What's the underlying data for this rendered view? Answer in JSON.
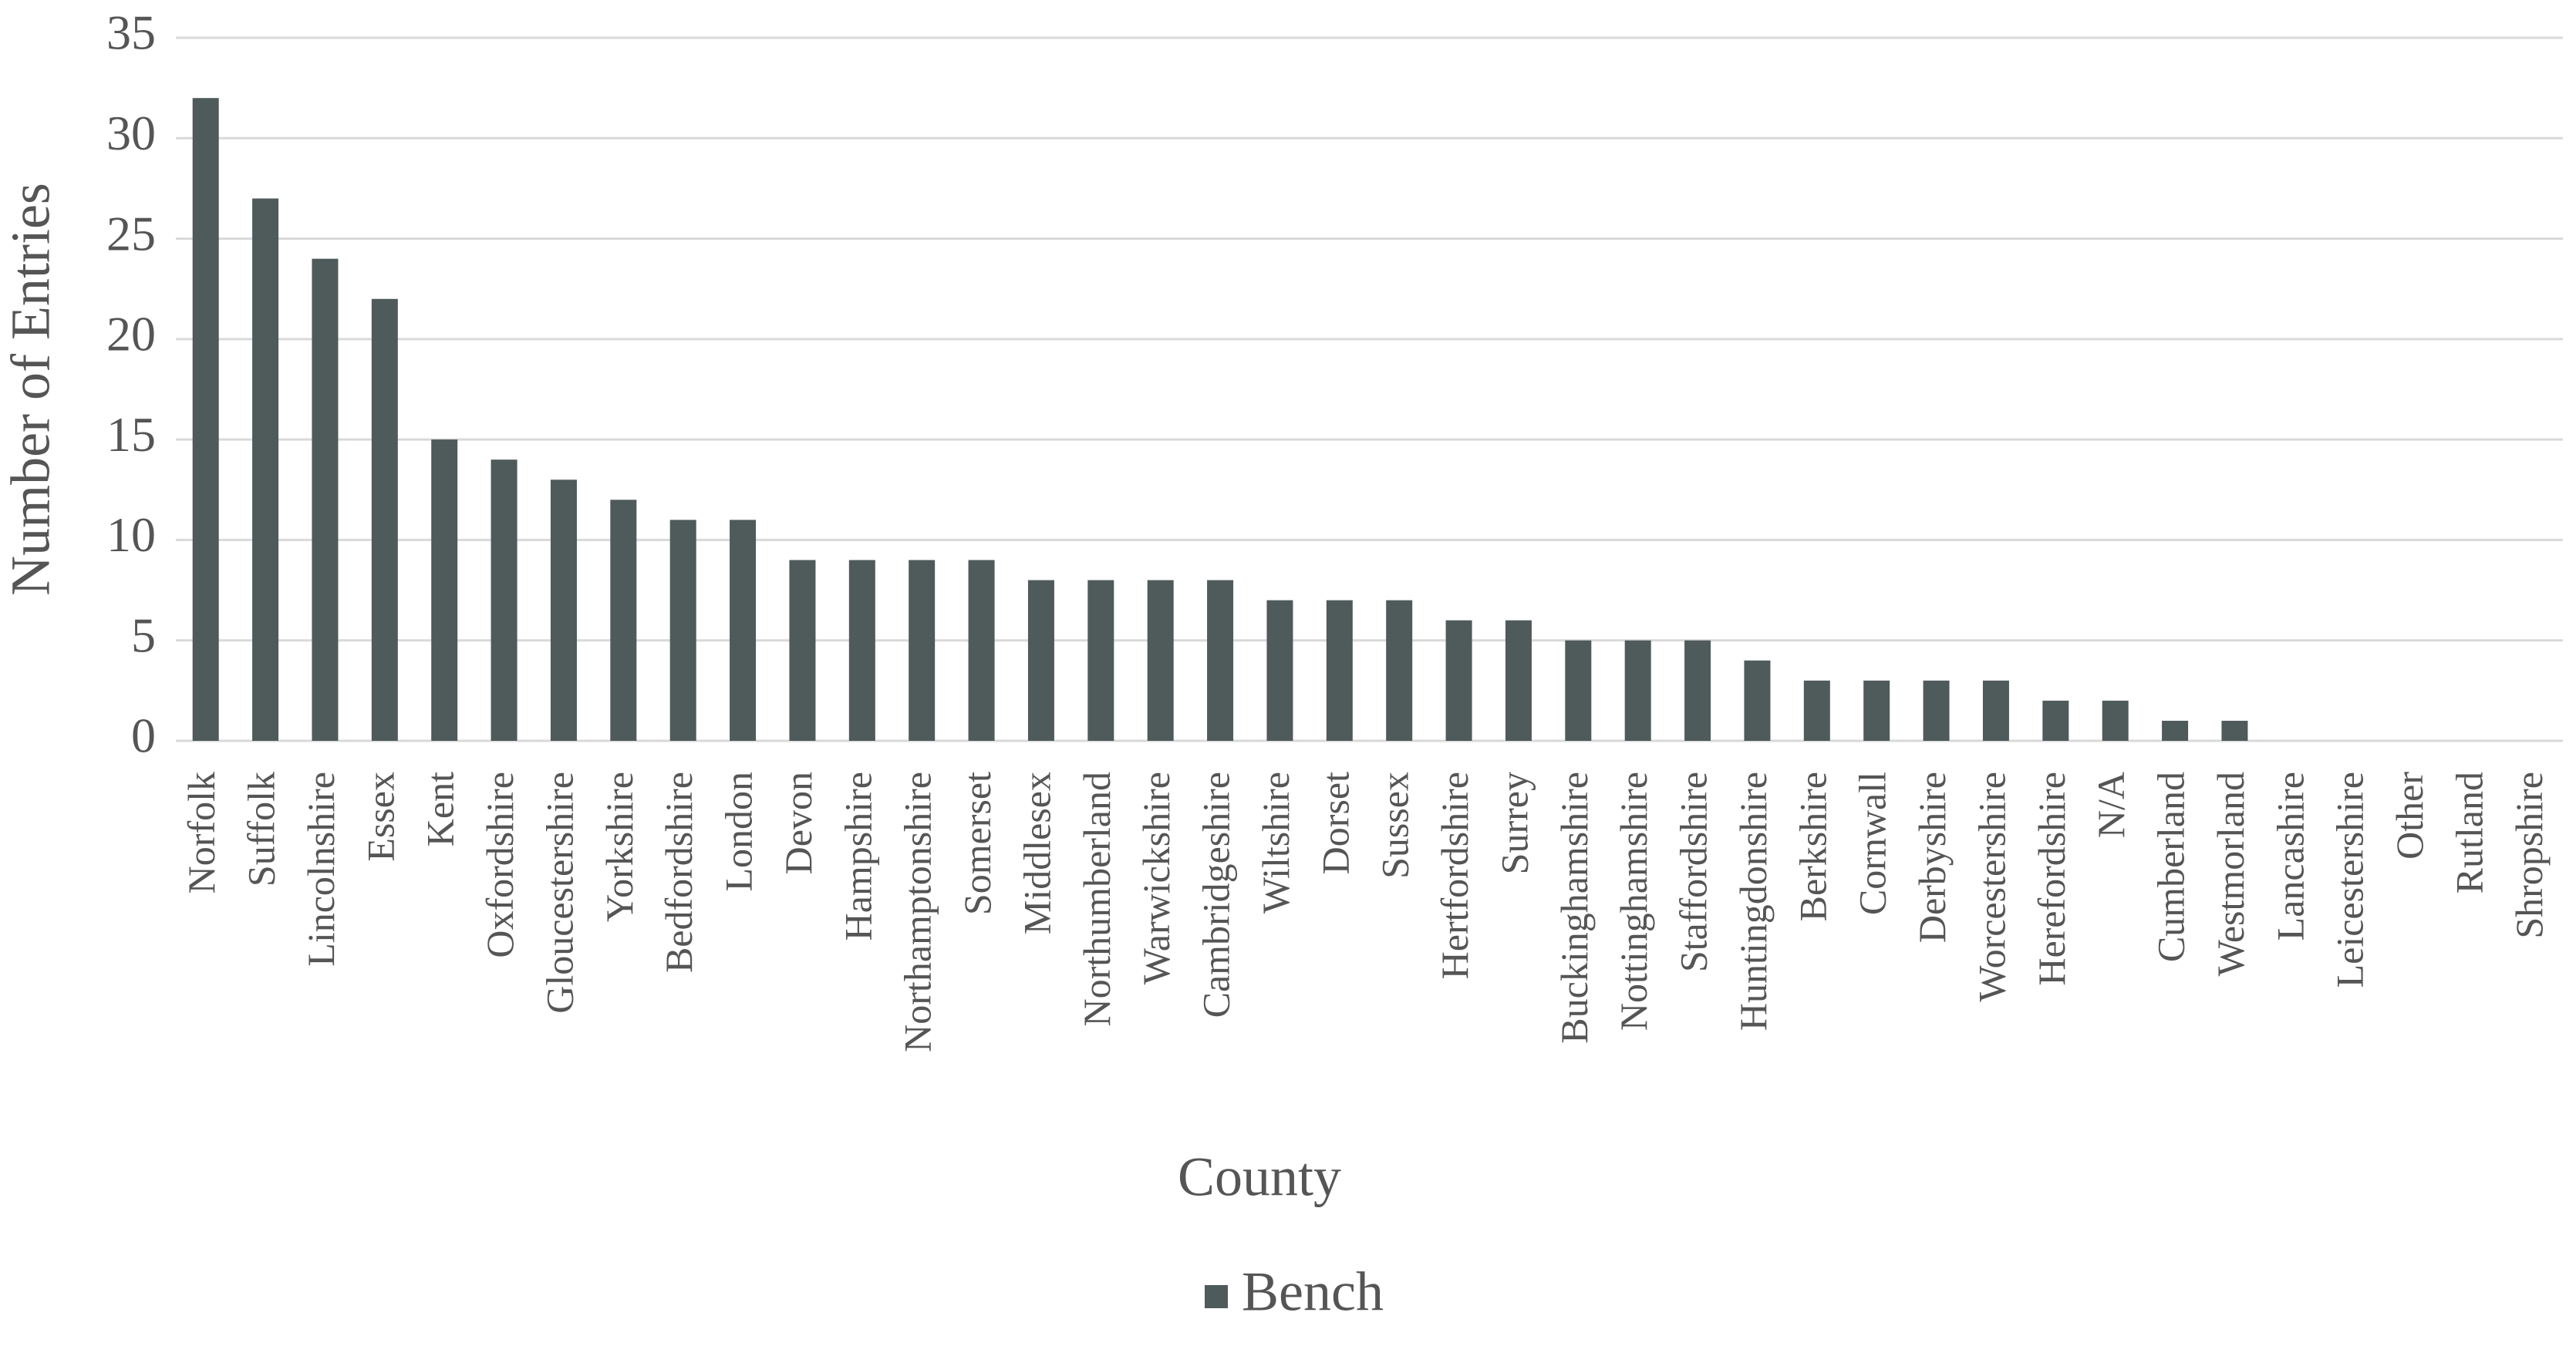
{
  "chart_data": {
    "type": "bar",
    "x_label": "County",
    "y_label": "Number of Entries",
    "categories": [
      "Norfolk",
      "Suffolk",
      "Lincolnshire",
      "Essex",
      "Kent",
      "Oxfordshire",
      "Gloucestershire",
      "Yorkshire",
      "Bedfordshire",
      "London",
      "Devon",
      "Hampshire",
      "Northamptonshire",
      "Somerset",
      "Middlesex",
      "Northumberland",
      "Warwickshire",
      "Cambridgeshire",
      "Wiltshire",
      "Dorset",
      "Sussex",
      "Hertfordshire",
      "Surrey",
      "Buckinghamshire",
      "Nottinghamshire",
      "Staffordshire",
      "Huntingdonshire",
      "Berkshire",
      "Cornwall",
      "Derbyshire",
      "Worcestershire",
      "Herefordshire",
      "N/A",
      "Cumberland",
      "Westmorland",
      "Lancashire",
      "Leicestershire",
      "Other",
      "Rutland",
      "Shropshire"
    ],
    "series": [
      {
        "name": "Bench",
        "color": "#4f5a5b",
        "values": [
          32,
          27,
          24,
          22,
          15,
          14,
          13,
          12,
          11,
          11,
          9,
          9,
          9,
          9,
          8,
          8,
          8,
          8,
          7,
          7,
          7,
          6,
          6,
          5,
          5,
          5,
          4,
          3,
          3,
          3,
          3,
          2,
          2,
          1,
          1,
          0,
          0,
          0,
          0,
          0
        ]
      }
    ],
    "ylim": [
      0,
      35
    ],
    "yticks": [
      0,
      5,
      10,
      15,
      20,
      25,
      30,
      35
    ],
    "grid": true,
    "legend": "bottom"
  }
}
